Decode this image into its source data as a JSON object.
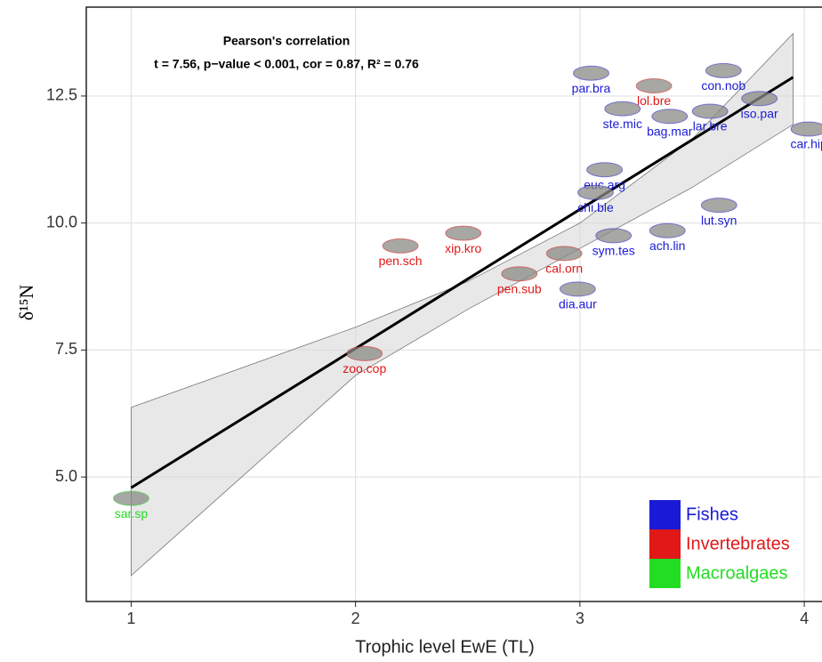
{
  "chart_data": {
    "type": "scatter",
    "annotation": {
      "title": "Pearson's correlation",
      "text": "t = 7.56, p−value < 0.001, cor = 0.87, R² = 0.76"
    },
    "x_label": "Trophic level EwE (TL)",
    "y_label": "δ¹⁵N",
    "xlim": [
      0.8,
      4.075
    ],
    "ylim": [
      2.55,
      14.25
    ],
    "xticks": [
      1,
      2,
      3,
      4
    ],
    "yticks": [
      {
        "value": 5,
        "label": "5.0"
      },
      {
        "value": 7.5,
        "label": "7.5"
      },
      {
        "value": 10,
        "label": "10.0"
      },
      {
        "value": 12.5,
        "label": "12.5"
      }
    ],
    "grid": true,
    "legend": "bottom-right",
    "fit": {
      "x": [
        1,
        3.95
      ],
      "y": [
        4.79,
        12.87
      ],
      "color": "#000000"
    },
    "band": {
      "x": [
        1,
        2,
        2.5,
        3,
        3.5,
        3.95
      ],
      "upper": [
        6.37,
        7.95,
        8.85,
        10.0,
        11.65,
        13.73
      ],
      "lower": [
        3.06,
        7.0,
        8.3,
        9.5,
        10.7,
        11.94
      ],
      "color": "#d9d9d9"
    },
    "series": [
      {
        "name": "Fishes",
        "color": "#1a1ad6",
        "labels": [
          "par.bra",
          "con.nob",
          "ste.mic",
          "bag.mar",
          "lar.bre",
          "iso.par",
          "car.hip",
          "euc.arg",
          "chi.ble",
          "lut.syn",
          "sym.tes",
          "ach.lin",
          "dia.aur"
        ],
        "x": [
          3.05,
          3.64,
          3.19,
          3.4,
          3.58,
          3.8,
          4.02,
          3.11,
          3.07,
          3.62,
          3.15,
          3.39,
          2.99
        ],
        "values": [
          12.95,
          13.0,
          12.25,
          12.1,
          12.2,
          12.45,
          11.85,
          11.05,
          10.6,
          10.35,
          9.75,
          9.85,
          8.7
        ]
      },
      {
        "name": "Invertebrates",
        "color": "#e01818",
        "labels": [
          "lol.bre",
          "xip.kro",
          "pen.sch",
          "cal.orn",
          "pen.sub",
          "zoo.cop"
        ],
        "x": [
          3.33,
          2.48,
          2.2,
          2.93,
          2.73,
          2.04
        ],
        "values": [
          12.7,
          9.8,
          9.55,
          9.4,
          9.0,
          7.43
        ]
      },
      {
        "name": "Macroalgaes",
        "color": "#22dd22",
        "labels": [
          "sar.sp"
        ],
        "x": [
          1.0
        ],
        "values": [
          4.58
        ]
      }
    ]
  }
}
